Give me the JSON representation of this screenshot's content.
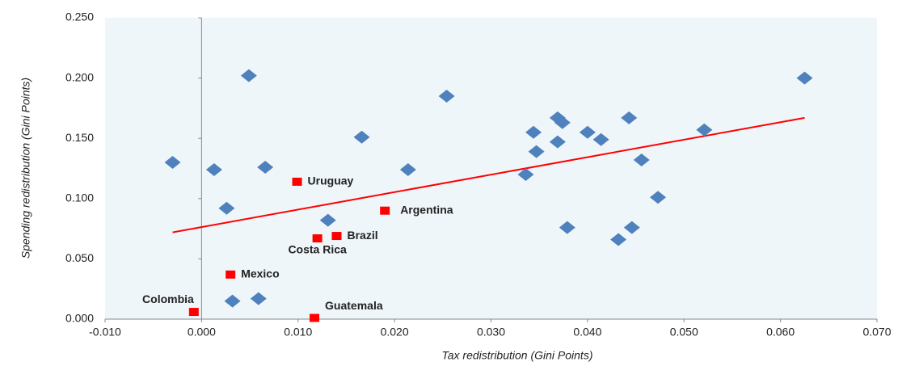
{
  "chart_data": {
    "type": "scatter",
    "xlabel": "Tax redistribution (Gini Points)",
    "ylabel": "Spending redistribution (Gini Points)",
    "xlim": [
      -0.01,
      0.07
    ],
    "ylim": [
      0,
      0.25
    ],
    "xticks": [
      {
        "value": -0.01,
        "label": "-0.010"
      },
      {
        "value": 0,
        "label": "0.000"
      },
      {
        "value": 0.01,
        "label": "0.010"
      },
      {
        "value": 0.02,
        "label": "0.020"
      },
      {
        "value": 0.03,
        "label": "0.030"
      },
      {
        "value": 0.04,
        "label": "0.040"
      },
      {
        "value": 0.05,
        "label": "0.050"
      },
      {
        "value": 0.06,
        "label": "0.060"
      },
      {
        "value": 0.07,
        "label": "0.070"
      }
    ],
    "yticks": [
      {
        "value": 0,
        "label": "0.000"
      },
      {
        "value": 0.05,
        "label": "0.050"
      },
      {
        "value": 0.1,
        "label": "0.100"
      },
      {
        "value": 0.15,
        "label": "0.150"
      },
      {
        "value": 0.2,
        "label": "0.200"
      },
      {
        "value": 0.25,
        "label": "0.250"
      }
    ],
    "series": [
      {
        "color": "#4f81bd",
        "x": [
          -0.003,
          0.0013,
          0.0049,
          0.0026,
          0.0066,
          0.0032,
          0.0059,
          0.0131,
          0.0166,
          0.0214,
          0.0254,
          0.0336,
          0.0344,
          0.0347,
          0.0369,
          0.0374,
          0.0369,
          0.0379,
          0.04,
          0.0414,
          0.0443,
          0.0432,
          0.0446,
          0.0456,
          0.0473,
          0.0521,
          0.0625
        ],
        "values": [
          0.13,
          0.124,
          0.202,
          0.092,
          0.126,
          0.015,
          0.017,
          0.082,
          0.151,
          0.124,
          0.185,
          0.12,
          0.155,
          0.139,
          0.167,
          0.163,
          0.147,
          0.076,
          0.155,
          0.149,
          0.167,
          0.066,
          0.076,
          0.132,
          0.101,
          0.157,
          0.2
        ]
      }
    ],
    "labeled_points": {
      "color": "#ff0000",
      "labels": [
        "Uruguay",
        "Argentina",
        "Brazil",
        "Costa Rica",
        "Mexico",
        "Colombia",
        "Guatemala"
      ],
      "x": [
        0.0099,
        0.019,
        0.014,
        0.012,
        0.003,
        -0.0008,
        0.0117
      ],
      "values": [
        0.114,
        0.09,
        0.069,
        0.067,
        0.037,
        0.006,
        0.001
      ]
    },
    "trendline": {
      "color": "#ff0000",
      "x": [
        -0.003,
        0.0625
      ],
      "values": [
        0.072,
        0.167
      ]
    }
  }
}
